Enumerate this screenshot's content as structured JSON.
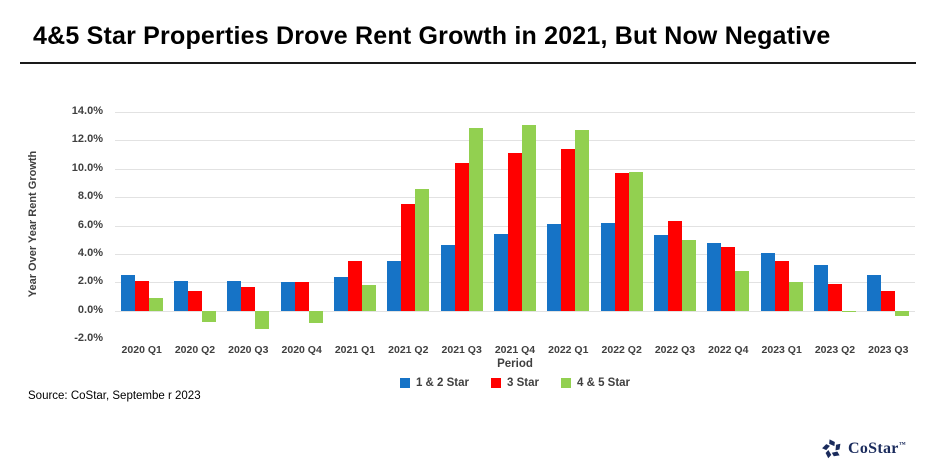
{
  "title": "4&5 Star Properties Drove Rent Growth in 2021, But Now Negative",
  "source": "Source: CoStar,  Septembe r 2023",
  "logo": {
    "text": "CoStar",
    "tm": "™",
    "icon": "costar-pinwheel-icon",
    "color": "#1a2b5c"
  },
  "chart_data": {
    "type": "bar",
    "title": "4&5 Star Properties Drove Rent Growth in 2021, But Now Negative",
    "xlabel": "Period",
    "ylabel": "Year Over Year Rent Growth",
    "ylim": [
      -2,
      14
    ],
    "ytick_step": 2,
    "ytick_suffix": "%",
    "grid": true,
    "gridline_range": [
      0,
      14
    ],
    "legend_position": "bottom",
    "categories": [
      "2020 Q1",
      "2020 Q2",
      "2020 Q3",
      "2020 Q4",
      "2021 Q1",
      "2021 Q2",
      "2021 Q3",
      "2021 Q4",
      "2022 Q1",
      "2022 Q2",
      "2022 Q3",
      "2022 Q4",
      "2023 Q1",
      "2023 Q2",
      "2023 Q3"
    ],
    "series": [
      {
        "name": "1 & 2 Star",
        "color": "#1673c6",
        "values": [
          2.5,
          2.1,
          2.1,
          2.0,
          2.4,
          3.5,
          4.6,
          5.4,
          6.1,
          6.2,
          5.3,
          4.8,
          4.1,
          3.2,
          2.5
        ]
      },
      {
        "name": "3 Star",
        "color": "#ff0000",
        "values": [
          2.1,
          1.4,
          1.7,
          2.0,
          3.5,
          7.5,
          10.4,
          11.1,
          11.4,
          9.7,
          6.3,
          4.5,
          3.5,
          1.9,
          1.4
        ]
      },
      {
        "name": "4 & 5 Star",
        "color": "#92d050",
        "values": [
          0.9,
          -0.8,
          -1.3,
          -0.9,
          1.8,
          8.6,
          12.9,
          13.1,
          12.7,
          9.8,
          5.0,
          2.8,
          2.0,
          -0.1,
          -0.4
        ]
      }
    ]
  }
}
